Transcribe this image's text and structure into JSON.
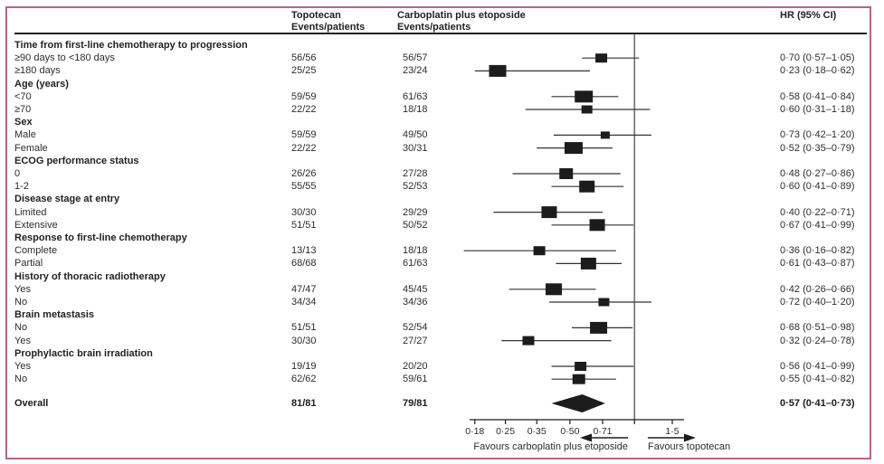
{
  "colors": {
    "frame": "#b7628e",
    "text": "#2d2d2d",
    "marker": "#1c1c1c",
    "ci_line": "#333333",
    "ref_line": "#707070",
    "axis": "#1c1c1c"
  },
  "header": {
    "col_topotecan": {
      "line1": "Topotecan",
      "line2": "Events/patients"
    },
    "col_carboplatin": {
      "line1": "Carboplatin plus etoposide",
      "line2": "Events/patients"
    },
    "col_hr": "HR (95% CI)"
  },
  "chart_data": {
    "type": "forest",
    "scale": "log",
    "axis": {
      "ticks": [
        0.18,
        0.25,
        0.35,
        0.5,
        0.71,
        1.5
      ],
      "tick_labels": [
        "0·18",
        "0·25",
        "0·35",
        "0·50",
        "0·71",
        "1·5"
      ],
      "ref_line": 1.0,
      "range": [
        0.169,
        1.62
      ],
      "grid": false
    },
    "favours_left": "Favours carboplatin plus etoposide",
    "favours_right": "Favours topotecan",
    "groups": [
      {
        "label": "Time from first-line chemotherapy to progression",
        "rows": [
          {
            "label": "≥90 days to <180 days",
            "topotecan": "56/56",
            "carboplatin": "56/57",
            "hr": 0.7,
            "lo": 0.57,
            "hi": 1.05,
            "hr_text": "0·70 (0·57–1·05)",
            "size": 13
          },
          {
            "label": "≥180 days",
            "topotecan": "25/25",
            "carboplatin": "23/24",
            "hr": 0.23,
            "lo": 0.18,
            "hi": 0.62,
            "hr_text": "0·23 (0·18–0·62)",
            "size": 19
          }
        ]
      },
      {
        "label": "Age (years)",
        "rows": [
          {
            "label": "<70",
            "topotecan": "59/59",
            "carboplatin": "61/63",
            "hr": 0.58,
            "lo": 0.41,
            "hi": 0.84,
            "hr_text": "0·58 (0·41–0·84)",
            "size": 20
          },
          {
            "label": "≥70",
            "topotecan": "22/22",
            "carboplatin": "18/18",
            "hr": 0.6,
            "lo": 0.31,
            "hi": 1.18,
            "hr_text": "0·60 (0·31–1·18)",
            "size": 12
          }
        ]
      },
      {
        "label": "Sex",
        "rows": [
          {
            "label": "Male",
            "topotecan": "59/59",
            "carboplatin": "49/50",
            "hr": 0.73,
            "lo": 0.42,
            "hi": 1.2,
            "hr_text": "0·73 (0·42–1·20)",
            "size": 10
          },
          {
            "label": "Female",
            "topotecan": "22/22",
            "carboplatin": "30/31",
            "hr": 0.52,
            "lo": 0.35,
            "hi": 0.79,
            "hr_text": "0·52 (0·35–0·79)",
            "size": 20
          }
        ]
      },
      {
        "label": "ECOG performance status",
        "rows": [
          {
            "label": "0",
            "topotecan": "26/26",
            "carboplatin": "27/28",
            "hr": 0.48,
            "lo": 0.27,
            "hi": 0.86,
            "hr_text": "0·48 (0·27–0·86)",
            "size": 15
          },
          {
            "label": "1-2",
            "topotecan": "55/55",
            "carboplatin": "52/53",
            "hr": 0.6,
            "lo": 0.41,
            "hi": 0.89,
            "hr_text": "0·60 (0·41–0·89)",
            "size": 17
          }
        ]
      },
      {
        "label": "Disease stage at entry",
        "rows": [
          {
            "label": "Limited",
            "topotecan": "30/30",
            "carboplatin": "29/29",
            "hr": 0.4,
            "lo": 0.22,
            "hi": 0.71,
            "hr_text": "0·40 (0·22–0·71)",
            "size": 17
          },
          {
            "label": "Extensive",
            "topotecan": "51/51",
            "carboplatin": "50/52",
            "hr": 0.67,
            "lo": 0.41,
            "hi": 0.99,
            "hr_text": "0·67 (0·41–0·99)",
            "size": 17
          }
        ]
      },
      {
        "label": "Response to first-line chemotherapy",
        "rows": [
          {
            "label": "Complete",
            "topotecan": "13/13",
            "carboplatin": "18/18",
            "hr": 0.36,
            "lo": 0.16,
            "hi": 0.82,
            "hr_text": "0·36 (0·16–0·82)",
            "size": 13
          },
          {
            "label": "Partial",
            "topotecan": "68/68",
            "carboplatin": "61/63",
            "hr": 0.61,
            "lo": 0.43,
            "hi": 0.87,
            "hr_text": "0·61 (0·43–0·87)",
            "size": 17
          }
        ]
      },
      {
        "label": "History of thoracic radiotherapy",
        "rows": [
          {
            "label": "Yes",
            "topotecan": "47/47",
            "carboplatin": "45/45",
            "hr": 0.42,
            "lo": 0.26,
            "hi": 0.66,
            "hr_text": "0·42 (0·26–0·66)",
            "size": 18
          },
          {
            "label": "No",
            "topotecan": "34/34",
            "carboplatin": "34/36",
            "hr": 0.72,
            "lo": 0.4,
            "hi": 1.2,
            "hr_text": "0·72 (0·40–1·20)",
            "size": 12
          }
        ]
      },
      {
        "label": "Brain metastasis",
        "rows": [
          {
            "label": "No",
            "topotecan": "51/51",
            "carboplatin": "52/54",
            "hr": 0.68,
            "lo": 0.51,
            "hi": 0.98,
            "hr_text": "0·68 (0·51–0·98)",
            "size": 19
          },
          {
            "label": "Yes",
            "topotecan": "30/30",
            "carboplatin": "27/27",
            "hr": 0.32,
            "lo": 0.24,
            "hi": 0.78,
            "hr_text": "0·32 (0·24–0·78)",
            "size": 13
          }
        ]
      },
      {
        "label": "Prophylactic brain irradiation",
        "rows": [
          {
            "label": "Yes",
            "topotecan": "19/19",
            "carboplatin": "20/20",
            "hr": 0.56,
            "lo": 0.41,
            "hi": 0.99,
            "hr_text": "0·56 (0·41–0·99)",
            "size": 13
          },
          {
            "label": "No",
            "topotecan": "62/62",
            "carboplatin": "59/61",
            "hr": 0.55,
            "lo": 0.41,
            "hi": 0.82,
            "hr_text": "0·55 (0·41–0·82)",
            "size": 14
          }
        ]
      }
    ],
    "overall": {
      "label": "Overall",
      "topotecan": "81/81",
      "carboplatin": "79/81",
      "hr": 0.57,
      "lo": 0.41,
      "hi": 0.73,
      "hr_text": "0·57 (0·41–0·73)"
    }
  }
}
